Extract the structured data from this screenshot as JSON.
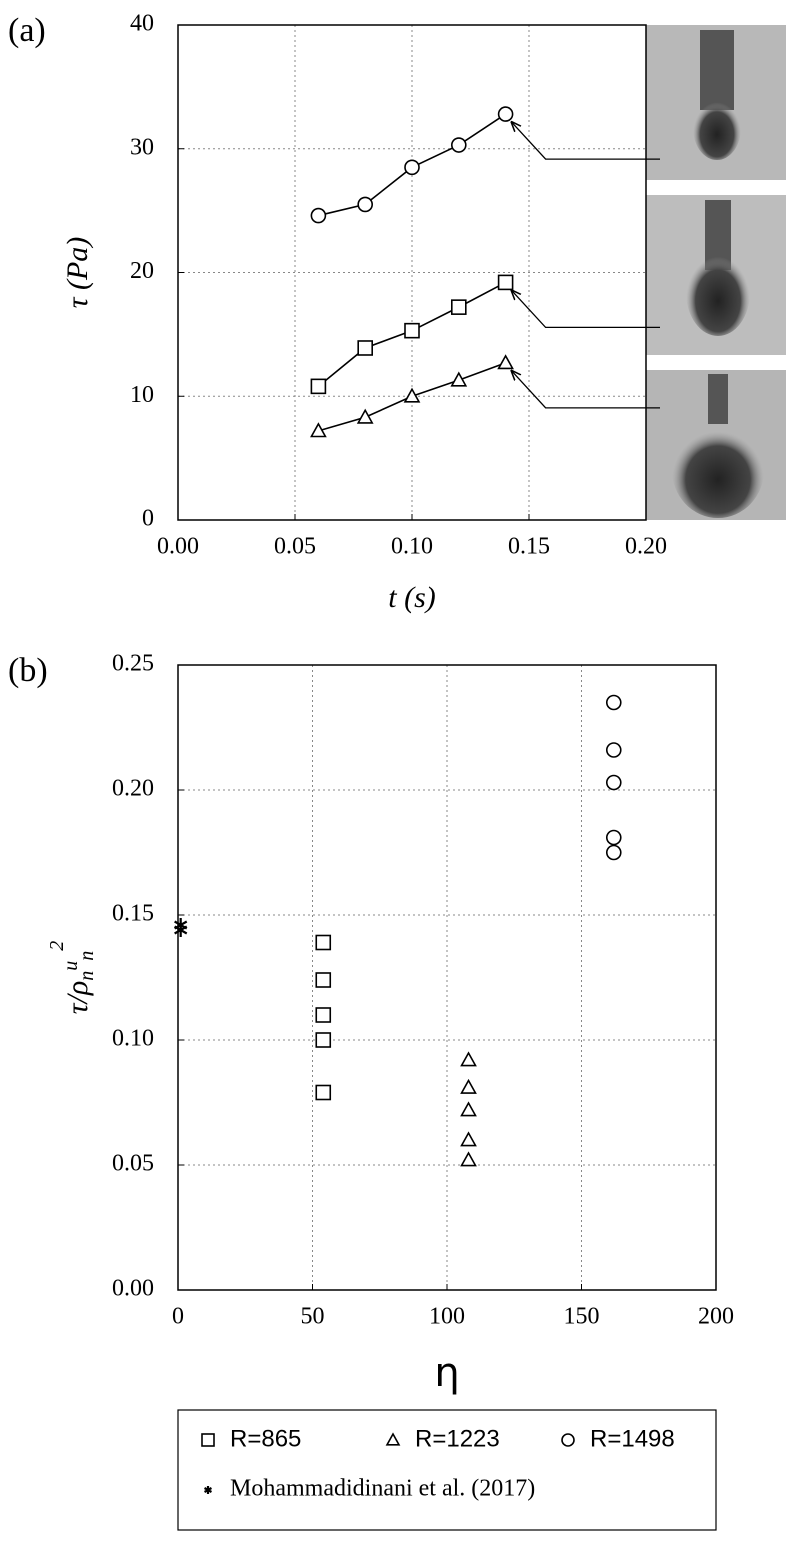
{
  "chart_data": [
    {
      "type": "line",
      "panel_label": "(a)",
      "y_label": "τ (Pa)",
      "x_label": "t (s)",
      "x": [
        0.06,
        0.08,
        0.1,
        0.12,
        0.14
      ],
      "xlim": [
        0,
        0.2
      ],
      "xticks": [
        {
          "value": 0,
          "label": "0.00"
        },
        {
          "value": 0.05,
          "label": "0.05"
        },
        {
          "value": 0.1,
          "label": "0.10"
        },
        {
          "value": 0.15,
          "label": "0.15"
        },
        {
          "value": 0.2,
          "label": "0.20"
        }
      ],
      "ylim": [
        0,
        40
      ],
      "yticks": [
        0,
        10,
        20,
        30,
        40
      ],
      "grid": true,
      "series": [
        {
          "marker": "circle",
          "color": "#000000",
          "values": [
            24.6,
            25.5,
            28.5,
            30.3,
            32.8
          ]
        },
        {
          "marker": "square",
          "color": "#000000",
          "values": [
            10.8,
            13.9,
            15.3,
            17.2,
            19.2
          ]
        },
        {
          "marker": "triangle",
          "color": "#000000",
          "values": [
            7.2,
            8.3,
            10.0,
            11.3,
            12.7
          ]
        }
      ]
    },
    {
      "type": "scatter",
      "panel_label": "(b)",
      "y_label_parts": [
        "τ/ρ",
        "n",
        "u",
        "n",
        "2"
      ],
      "x_label": "η",
      "xlim": [
        0,
        200
      ],
      "xticks": [
        0,
        50,
        100,
        150,
        200
      ],
      "ylim": [
        0,
        0.25
      ],
      "yticks": [
        {
          "value": 0,
          "label": "0.00"
        },
        {
          "value": 0.05,
          "label": "0.05"
        },
        {
          "value": 0.1,
          "label": "0.10"
        },
        {
          "value": 0.15,
          "label": "0.15"
        },
        {
          "value": 0.2,
          "label": "0.20"
        },
        {
          "value": 0.25,
          "label": "0.25"
        }
      ],
      "grid": true,
      "series": [
        {
          "name": "R=865",
          "marker": "square",
          "color": "#000000",
          "x": [
            54,
            54,
            54,
            54,
            54
          ],
          "values": [
            0.139,
            0.124,
            0.11,
            0.1,
            0.079
          ]
        },
        {
          "name": "R=1223",
          "marker": "triangle",
          "color": "#000000",
          "x": [
            108,
            108,
            108,
            108,
            108
          ],
          "values": [
            0.092,
            0.081,
            0.072,
            0.06,
            0.052
          ]
        },
        {
          "name": "R=1498",
          "marker": "circle",
          "color": "#000000",
          "x": [
            162,
            162,
            162,
            162,
            162
          ],
          "values": [
            0.235,
            0.216,
            0.203,
            0.181,
            0.175
          ]
        },
        {
          "name": "Mohammadidinani et al. (2017)",
          "marker": "asterisk",
          "color": "#000000",
          "x": [
            1,
            1
          ],
          "values": [
            0.146,
            0.144
          ]
        }
      ]
    }
  ]
}
